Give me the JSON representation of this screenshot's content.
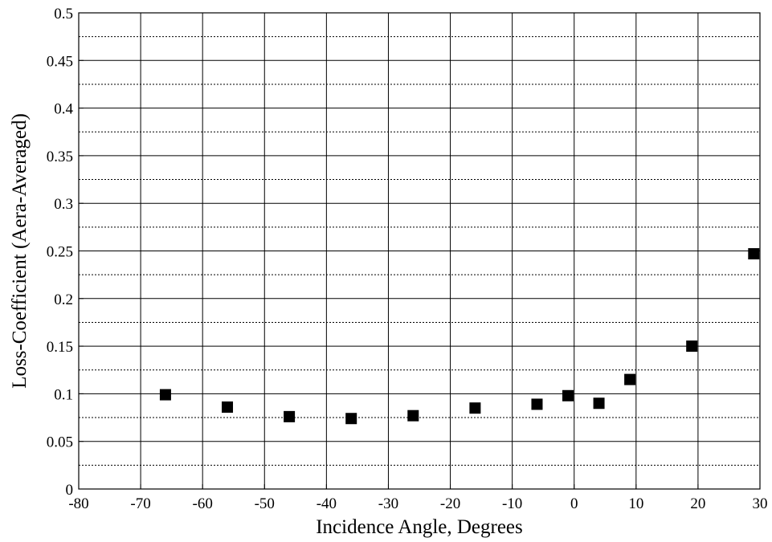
{
  "chart_data": {
    "type": "scatter",
    "title": "",
    "xlabel": "Incidence Angle, Degrees",
    "ylabel": "Loss-Coefficient (Aera-Averaged)",
    "xlim": [
      -80,
      30
    ],
    "ylim": [
      0,
      0.5
    ],
    "x_ticks": [
      -80,
      -70,
      -60,
      -50,
      -40,
      -30,
      -20,
      -10,
      0,
      10,
      20,
      30
    ],
    "x_tick_labels": [
      "-80",
      "-70",
      "-60",
      "-50",
      "-40",
      "-30",
      "-20",
      "-10",
      "0",
      "10",
      "20",
      "30"
    ],
    "y_ticks": [
      0,
      0.05,
      0.1,
      0.15,
      0.2,
      0.25,
      0.3,
      0.35,
      0.4,
      0.45,
      0.5
    ],
    "y_tick_labels": [
      "0",
      "0.05",
      "0.1",
      "0.15",
      "0.2",
      "0.25",
      "0.3",
      "0.35",
      "0.4",
      "0.45",
      "0.5"
    ],
    "grid": true,
    "minor_grid_y": [
      0.025,
      0.075,
      0.125,
      0.175,
      0.225,
      0.275,
      0.325,
      0.375,
      0.425,
      0.475
    ],
    "marker": "square",
    "marker_color": "#000000",
    "series": [
      {
        "x": [
          -66,
          -56,
          -46,
          -36,
          -26,
          -16,
          -6,
          -1,
          4,
          9,
          19,
          29
        ],
        "y": [
          0.099,
          0.086,
          0.076,
          0.074,
          0.077,
          0.085,
          0.089,
          0.098,
          0.09,
          0.115,
          0.15,
          0.247
        ]
      }
    ]
  }
}
